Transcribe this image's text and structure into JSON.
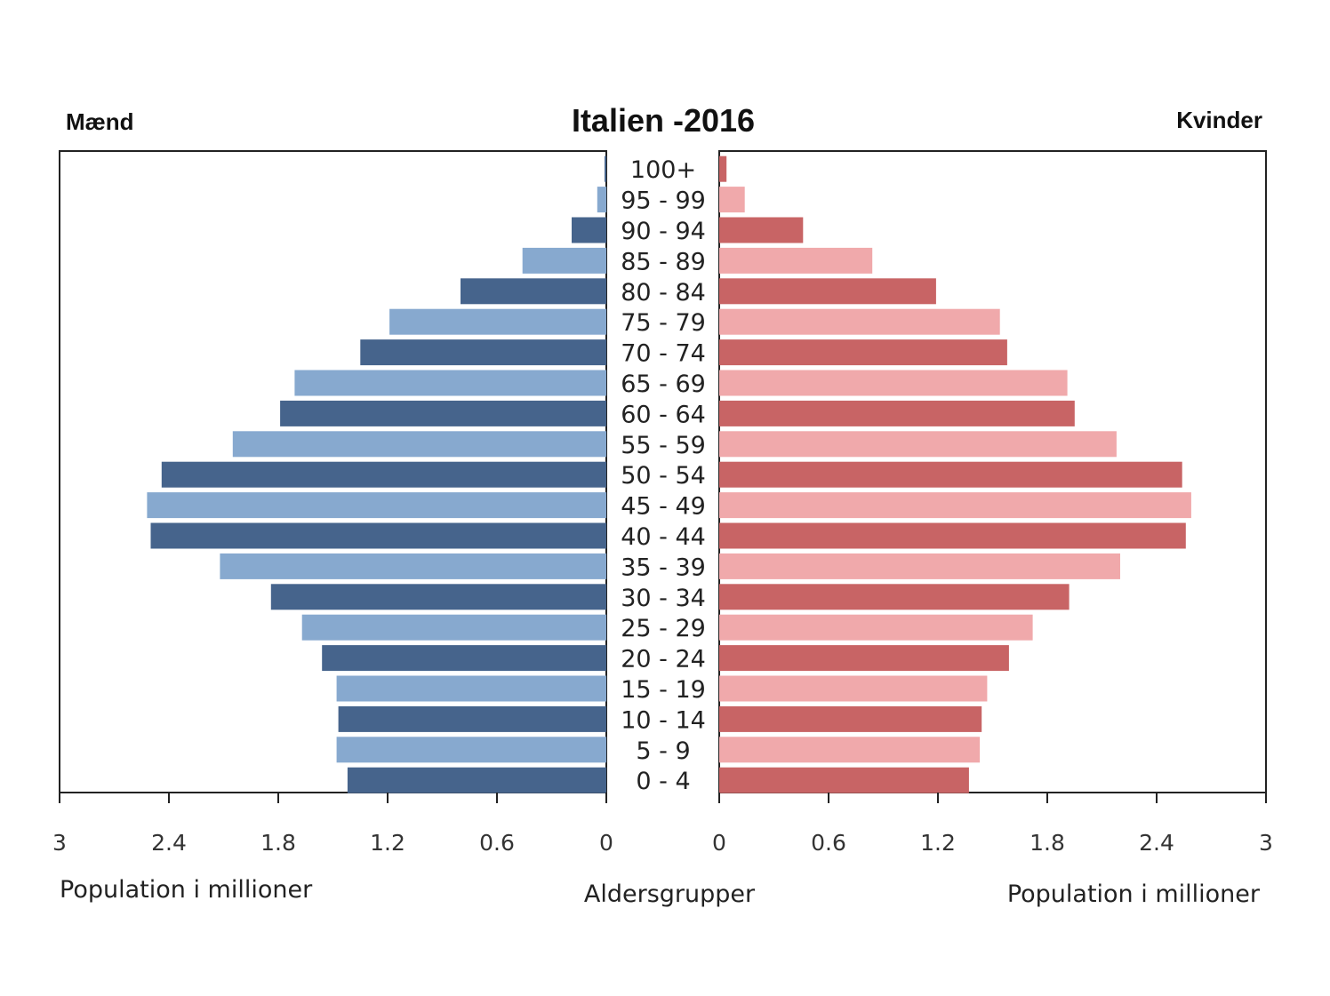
{
  "colors": {
    "male_dark": "#46648C",
    "male_light": "#87A9CF",
    "female_dark": "#C86465",
    "female_light": "#F0A9AB"
  },
  "chart_data": {
    "type": "bar",
    "subtype": "population-pyramid",
    "title": "Italien -2016",
    "left_label": "Mænd",
    "right_label": "Kvinder",
    "center_axis_label": "Aldersgrupper",
    "left_xlabel": "Population i millioner",
    "right_xlabel": "Population i millioner",
    "xlim": [
      0,
      3
    ],
    "left_ticks": [
      "3",
      "2.4",
      "1.8",
      "1.2",
      "0.6",
      "0"
    ],
    "right_ticks": [
      "0",
      "0.6",
      "1.2",
      "1.8",
      "2.4",
      "3"
    ],
    "tick_values": [
      0,
      0.6,
      1.2,
      1.8,
      2.4,
      3
    ],
    "categories": [
      "100+",
      "95 - 99",
      "90 - 94",
      "85 - 89",
      "80 - 84",
      "75 - 79",
      "70 - 74",
      "65 - 69",
      "60 - 64",
      "55 - 59",
      "50 - 54",
      "45 - 49",
      "40 - 44",
      "35 - 39",
      "30 - 34",
      "25 - 29",
      "20 - 24",
      "15 - 19",
      "10 - 14",
      "5 - 9",
      "0 - 4"
    ],
    "series": [
      {
        "side": "left",
        "values": [
          0.01,
          0.05,
          0.19,
          0.46,
          0.8,
          1.19,
          1.35,
          1.71,
          1.79,
          2.05,
          2.44,
          2.52,
          2.5,
          2.12,
          1.84,
          1.67,
          1.56,
          1.48,
          1.47,
          1.48,
          1.42
        ]
      },
      {
        "side": "right",
        "values": [
          0.04,
          0.14,
          0.46,
          0.84,
          1.19,
          1.54,
          1.58,
          1.91,
          1.95,
          2.18,
          2.54,
          2.59,
          2.56,
          2.2,
          1.92,
          1.72,
          1.59,
          1.47,
          1.44,
          1.43,
          1.37
        ]
      }
    ],
    "grid": false,
    "legend": "none"
  }
}
